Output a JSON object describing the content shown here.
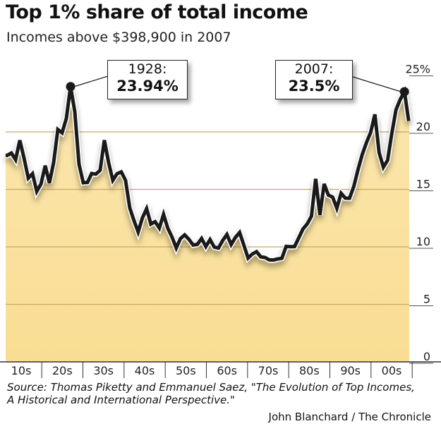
{
  "title": "Top 1% share of total income",
  "subtitle": "Incomes above $398,900 in 2007",
  "source": "Source: Thomas Piketty and Emmanuel Saez, \"The Evolution of Top Incomes,",
  "source_line2": "A Historical and International Perspective.\"",
  "credit": "John Blanchard / The Chronicle",
  "colors": {
    "fill": "#f9dd93",
    "line": "#1a1a1a",
    "grid": "#c9a866"
  },
  "chart_data": {
    "type": "area",
    "title": "Top 1% share of total income",
    "subtitle": "Incomes above $398,900 in 2007",
    "ylim": [
      0,
      25
    ],
    "y_ticks": [
      0,
      5,
      10,
      15,
      20,
      25
    ],
    "y_tick_labels": [
      "0",
      "5",
      "10",
      "15",
      "20",
      "25%"
    ],
    "x_tick_labels": [
      "10s",
      "20s",
      "30s",
      "40s",
      "50s",
      "60s",
      "70s",
      "80s",
      "90s",
      "00s"
    ],
    "grid": true,
    "x": [
      1913,
      1914,
      1915,
      1916,
      1917,
      1918,
      1919,
      1920,
      1921,
      1922,
      1923,
      1924,
      1925,
      1926,
      1927,
      1928,
      1929,
      1930,
      1931,
      1932,
      1933,
      1934,
      1935,
      1936,
      1937,
      1938,
      1939,
      1940,
      1941,
      1942,
      1943,
      1944,
      1945,
      1946,
      1947,
      1948,
      1949,
      1950,
      1951,
      1952,
      1953,
      1954,
      1955,
      1956,
      1957,
      1958,
      1959,
      1960,
      1961,
      1962,
      1963,
      1964,
      1965,
      1966,
      1967,
      1968,
      1969,
      1970,
      1971,
      1972,
      1973,
      1974,
      1975,
      1976,
      1977,
      1978,
      1979,
      1980,
      1981,
      1982,
      1983,
      1984,
      1985,
      1986,
      1987,
      1988,
      1989,
      1990,
      1991,
      1992,
      1993,
      1994,
      1995,
      1996,
      1997,
      1998,
      1999,
      2000,
      2001,
      2002,
      2003,
      2004,
      2005,
      2006,
      2007,
      2008
    ],
    "values": [
      17.96,
      18.16,
      17.58,
      19.27,
      17.71,
      15.98,
      16.37,
      14.83,
      15.47,
      17.07,
      15.56,
      17.34,
      20.21,
      19.92,
      21.16,
      23.94,
      21.76,
      17.18,
      15.58,
      15.61,
      16.38,
      16.33,
      16.66,
      19.28,
      17.34,
      15.79,
      16.36,
      16.52,
      15.79,
      13.39,
      12.28,
      11.3,
      12.52,
      13.32,
      11.99,
      12.19,
      11.64,
      12.82,
      11.62,
      10.85,
      9.91,
      10.72,
      11.04,
      10.66,
      10.16,
      10.22,
      10.73,
      10.03,
      10.63,
      9.98,
      9.9,
      10.55,
      11.08,
      10.2,
      10.82,
      11.25,
      10.15,
      9.03,
      9.38,
      9.58,
      9.13,
      9.08,
      8.87,
      8.86,
      8.95,
      9.01,
      10.04,
      10.02,
      10.03,
      10.8,
      11.56,
      12.0,
      12.67,
      15.92,
      12.78,
      15.48,
      14.5,
      14.33,
      13.36,
      14.67,
      14.24,
      14.23,
      15.23,
      16.7,
      18.02,
      19.06,
      19.96,
      21.52,
      18.2,
      16.93,
      17.53,
      19.84,
      21.92,
      22.82,
      23.5,
      20.95
    ],
    "annotations": [
      {
        "year": 1928,
        "label": "1928:",
        "value_label": "23.94%"
      },
      {
        "year": 2007,
        "label": "2007:",
        "value_label": "23.5%"
      }
    ]
  }
}
